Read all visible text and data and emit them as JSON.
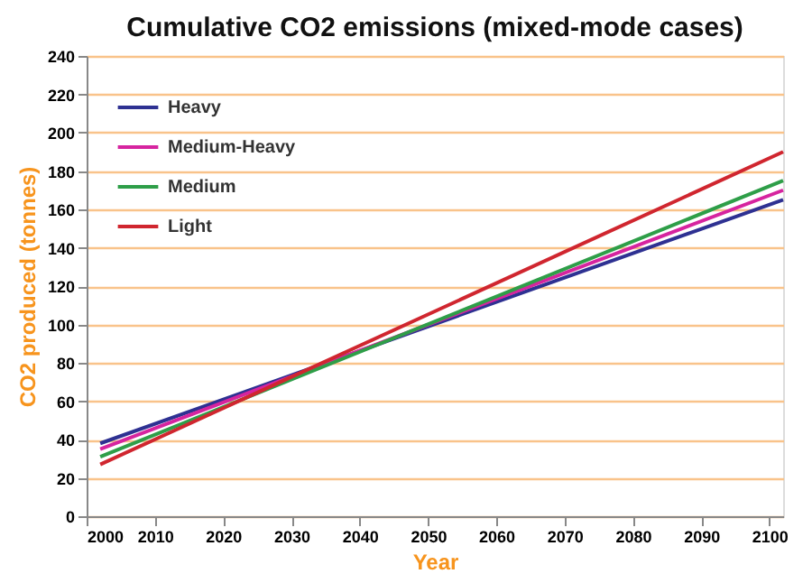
{
  "chart_data": {
    "type": "line",
    "title": "Cumulative CO2 emissions (mixed-mode cases)",
    "xlabel": "Year",
    "ylabel": "CO2 produced (tonnes)",
    "x": [
      2002,
      2102
    ],
    "series": [
      {
        "name": "Heavy",
        "color": "#2e3192",
        "values": [
          38,
          165
        ]
      },
      {
        "name": "Medium-Heavy",
        "color": "#d6249f",
        "values": [
          35,
          170
        ]
      },
      {
        "name": "Medium",
        "color": "#2e9e48",
        "values": [
          31,
          175
        ]
      },
      {
        "name": "Light",
        "color": "#d0262f",
        "values": [
          27,
          190
        ]
      }
    ],
    "xlim": [
      2000,
      2102
    ],
    "xticks": [
      2000,
      2010,
      2020,
      2030,
      2040,
      2050,
      2060,
      2070,
      2080,
      2090,
      2100
    ],
    "ylim": [
      0,
      240
    ],
    "yticks": [
      0,
      20,
      40,
      60,
      80,
      100,
      120,
      140,
      160,
      180,
      200,
      220,
      240
    ],
    "grid": "y",
    "legend": "top left",
    "marker": "none",
    "line_style": "solid"
  }
}
